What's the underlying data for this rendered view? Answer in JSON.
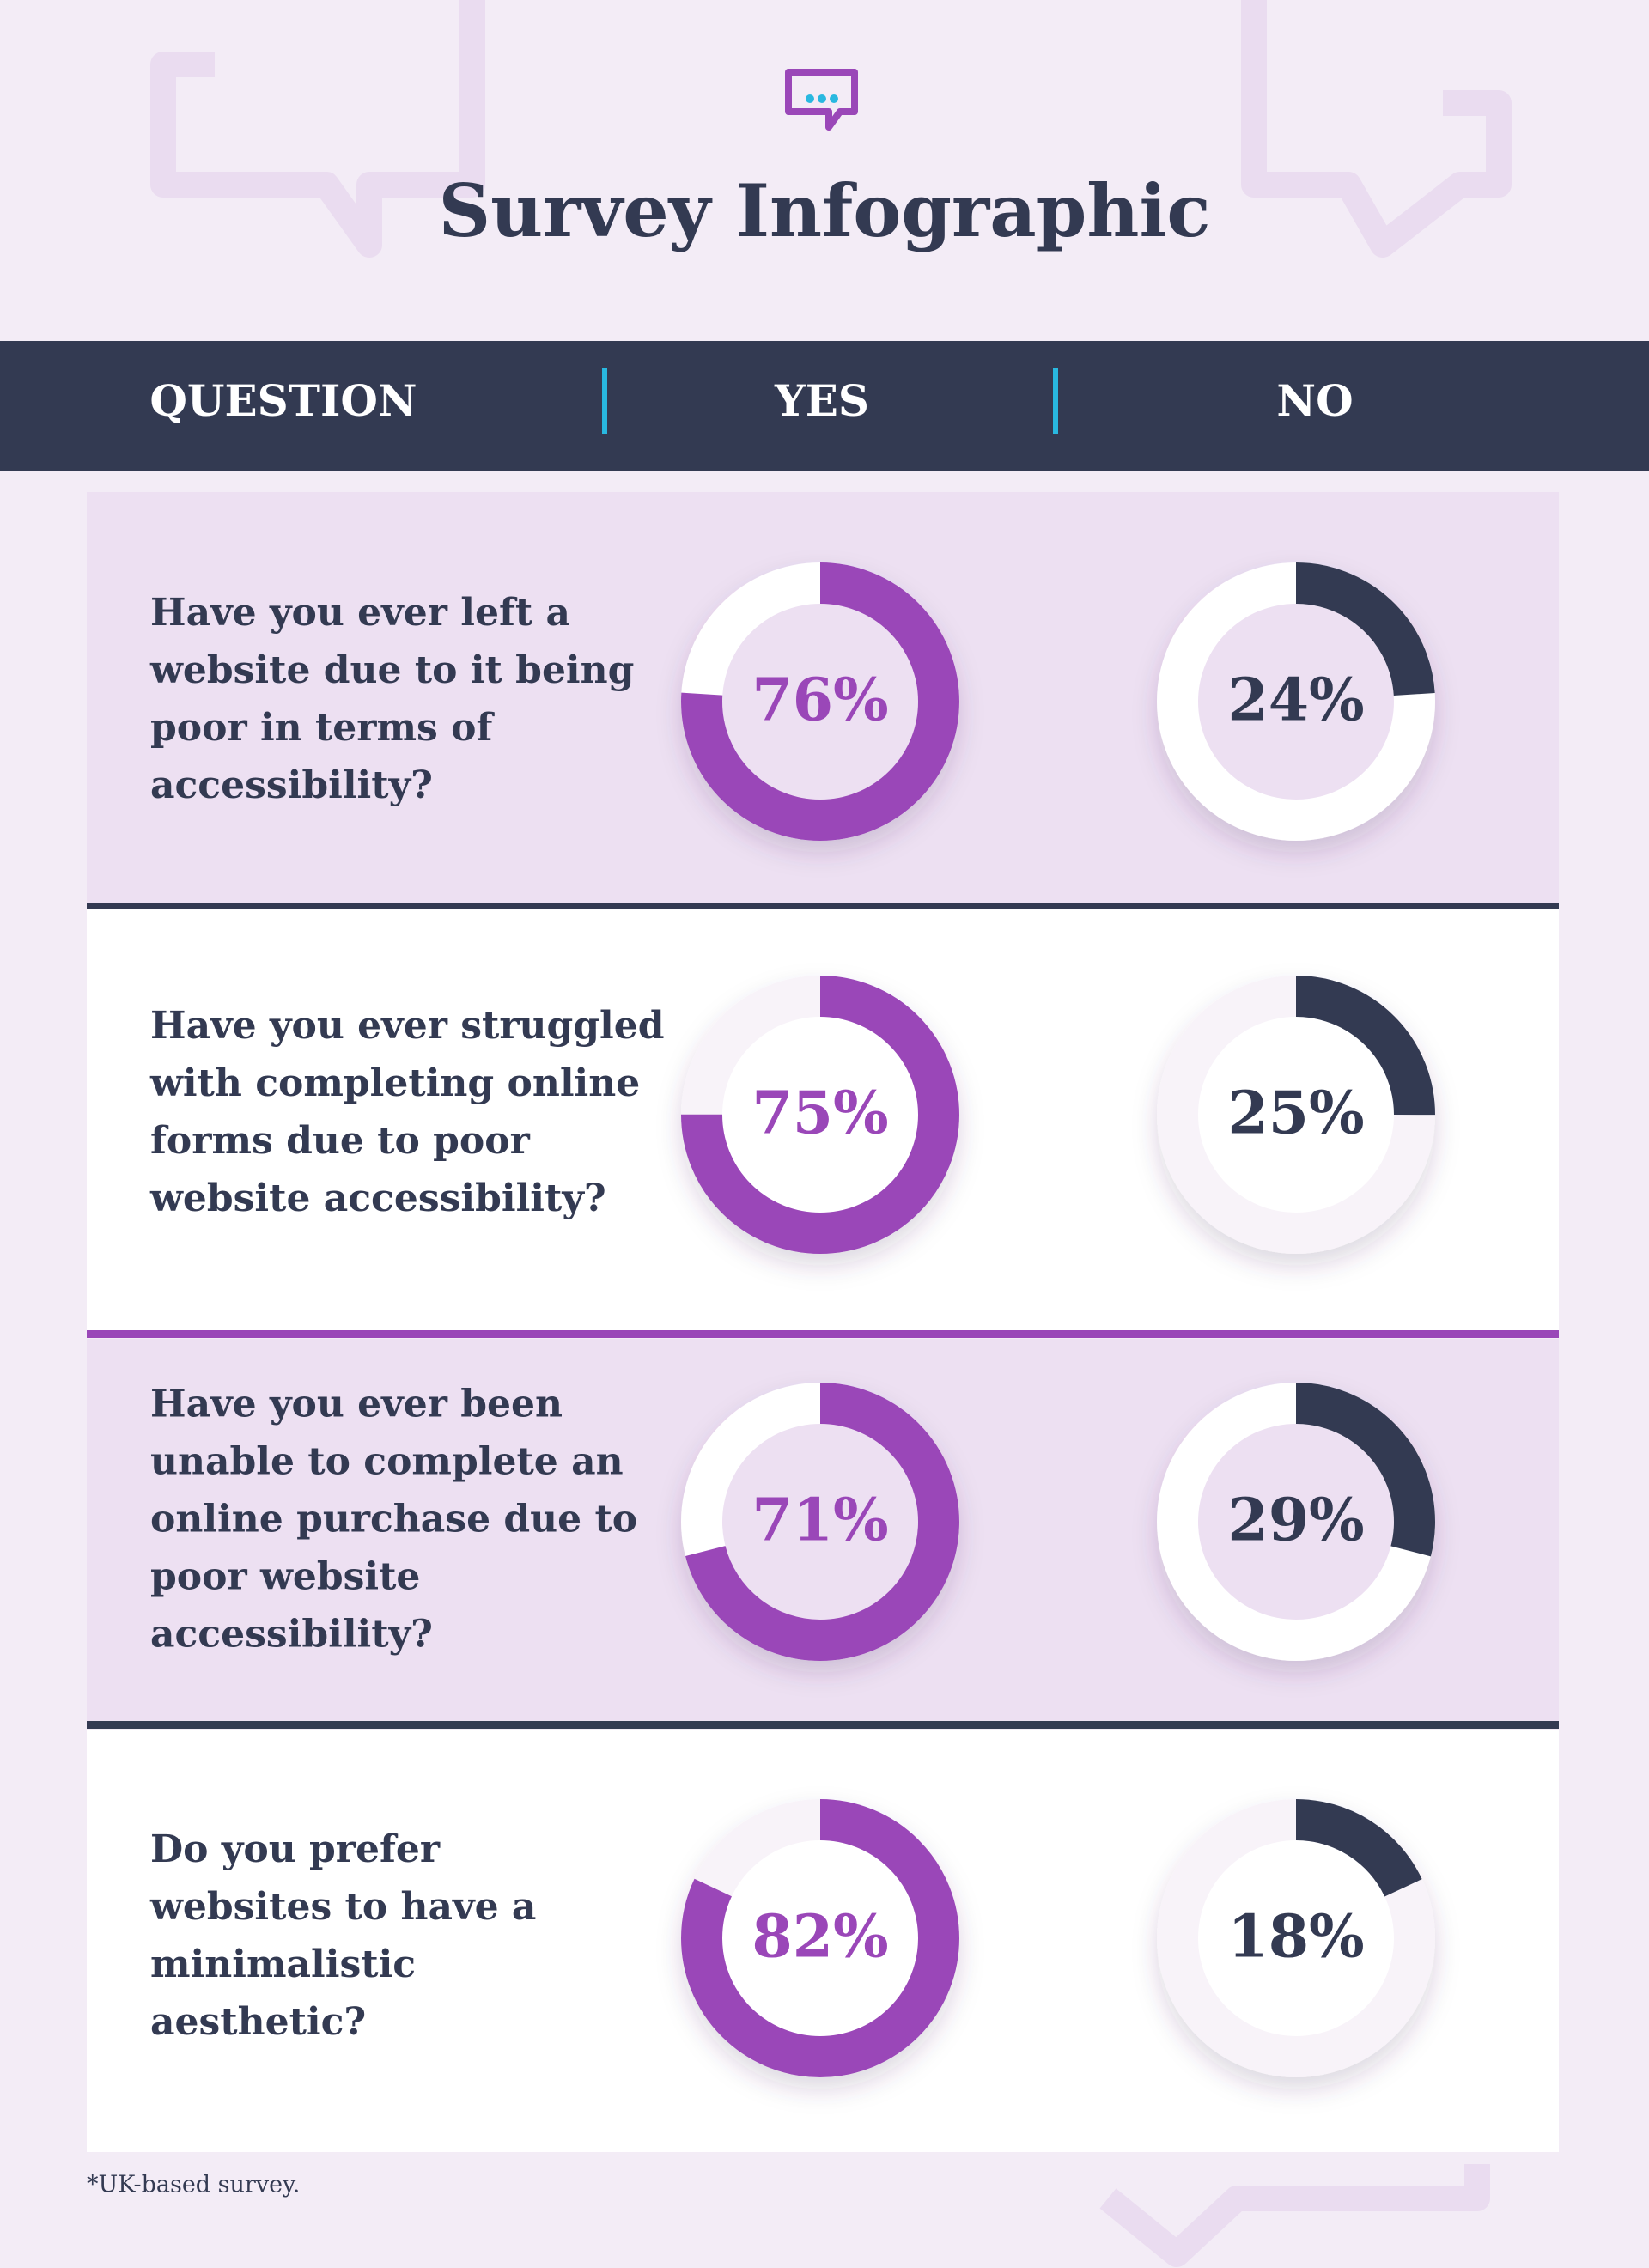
{
  "title": "Survey Infographic",
  "header": [
    "QUESTION",
    "YES",
    "NO"
  ],
  "rows": [
    {
      "question": [
        "Have you ever left a",
        "website due to it being",
        "poor in terms of",
        "accessibility?"
      ],
      "yes": {
        "value": 76,
        "label": "76%"
      },
      "no": {
        "value": 24,
        "label": "24%"
      }
    },
    {
      "question": [
        "Have you ever struggled",
        "with completing online",
        "forms due to poor",
        "website accessibility?"
      ],
      "yes": {
        "value": 75,
        "label": "75%"
      },
      "no": {
        "value": 25,
        "label": "25%"
      }
    },
    {
      "question": [
        "Have you ever been",
        "unable to complete an",
        "online purchase due to",
        "poor website",
        "accessibility?"
      ],
      "yes": {
        "value": 71,
        "label": "71%"
      },
      "no": {
        "value": 29,
        "label": "29%"
      }
    },
    {
      "question": [
        "Do you prefer",
        "websites to have a",
        "minimalistic",
        "aesthetic?"
      ],
      "yes": {
        "value": 82,
        "label": "82%"
      },
      "no": {
        "value": 18,
        "label": "18%"
      }
    }
  ],
  "footnote": "*UK-based survey."
}
